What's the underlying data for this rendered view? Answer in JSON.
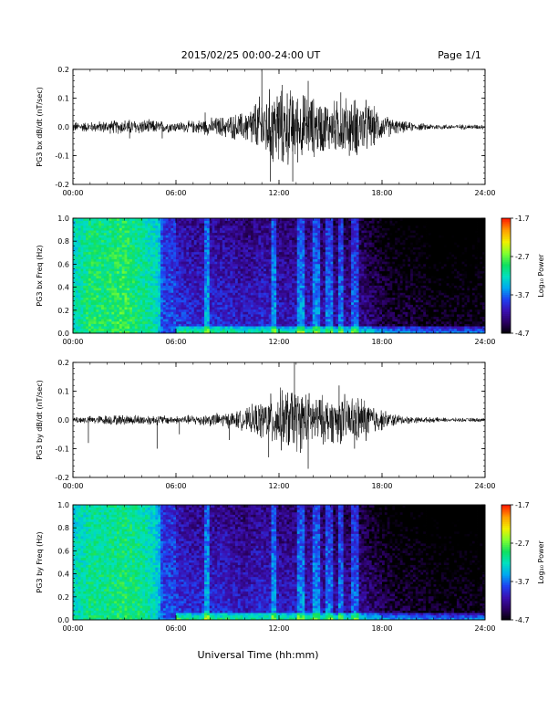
{
  "header": {
    "date_range": "2015/02/25  00:00-24:00 UT",
    "page": "Page 1/1"
  },
  "footer": {
    "xlabel": "Universal Time (hh:mm)"
  },
  "colorbar": {
    "label": "Log₁₀ Power",
    "ticks": [
      "-1.7",
      "-2.7",
      "-3.7",
      "-4.7"
    ],
    "range": [
      -4.7,
      -1.7
    ],
    "colors": [
      "#000000",
      "#2a0060",
      "#3a10b0",
      "#2040f0",
      "#00a8f0",
      "#00e0c0",
      "#10e060",
      "#80ff30",
      "#f0f000",
      "#ffa000",
      "#ff2000"
    ]
  },
  "chart_data": [
    {
      "type": "line",
      "ylabel": "PG3 bx dB/dt (nT/sec)",
      "ylim": [
        -0.2,
        0.2
      ],
      "yticks": [
        "0.2",
        "0.1",
        "0.0",
        "-0.1",
        "-0.2"
      ],
      "xticks": [
        "00:00",
        "06:00",
        "12:00",
        "18:00",
        "24:00"
      ],
      "envelope_hours": [
        0,
        1,
        2,
        3,
        4,
        5,
        6,
        7,
        8,
        9,
        10,
        11,
        12,
        13,
        14,
        15,
        16,
        17,
        18,
        19,
        20,
        21,
        22,
        23,
        24
      ],
      "envelope_amplitude": [
        0.02,
        0.02,
        0.025,
        0.03,
        0.03,
        0.025,
        0.02,
        0.025,
        0.035,
        0.045,
        0.06,
        0.13,
        0.17,
        0.14,
        0.12,
        0.1,
        0.12,
        0.11,
        0.05,
        0.025,
        0.015,
        0.012,
        0.01,
        0.01,
        0.01
      ],
      "spikes": [
        [
          3.3,
          -0.04
        ],
        [
          5.2,
          -0.04
        ],
        [
          7.7,
          0.05
        ],
        [
          11.0,
          0.2
        ],
        [
          11.5,
          -0.19
        ],
        [
          12.8,
          -0.19
        ],
        [
          13.7,
          0.16
        ],
        [
          15.6,
          0.12
        ],
        [
          16.5,
          -0.08
        ]
      ]
    },
    {
      "type": "heatmap",
      "ylabel": "PG3 bx Freq (Hz)",
      "ylim": [
        0.0,
        1.0
      ],
      "yticks": [
        "1.0",
        "0.8",
        "0.6",
        "0.4",
        "0.2",
        "0.0"
      ],
      "xticks": [
        "00:00",
        "06:00",
        "12:00",
        "18:00",
        "24:00"
      ],
      "colorbar_label": "Log₁₀ Power",
      "zlim": [
        -4.7,
        -1.7
      ],
      "level_hours": [
        0,
        1,
        2,
        3,
        4,
        5,
        5.2,
        6,
        7,
        8,
        9,
        10,
        11,
        12,
        13,
        14,
        15,
        16,
        17,
        18,
        19,
        20,
        21,
        22,
        23,
        24
      ],
      "level_log_power": [
        -3.2,
        -2.9,
        -2.9,
        -2.8,
        -3.0,
        -3.2,
        -3.8,
        -3.8,
        -3.9,
        -3.9,
        -3.9,
        -4.0,
        -3.9,
        -4.0,
        -4.0,
        -4.0,
        -4.1,
        -4.1,
        -4.2,
        -4.4,
        -4.5,
        -4.5,
        -4.6,
        -4.6,
        -4.6,
        -4.6
      ],
      "vertical_bursts_hours": [
        7.8,
        11.7,
        13.3,
        14.2,
        14.9,
        15.6,
        16.4
      ]
    },
    {
      "type": "line",
      "ylabel": "PG3 by dB/dt (nT/sec)",
      "ylim": [
        -0.2,
        0.2
      ],
      "yticks": [
        "0.2",
        "0.1",
        "0.0",
        "-0.1",
        "-0.2"
      ],
      "xticks": [
        "00:00",
        "06:00",
        "12:00",
        "18:00",
        "24:00"
      ],
      "envelope_hours": [
        0,
        1,
        2,
        3,
        4,
        5,
        6,
        7,
        8,
        9,
        10,
        11,
        12,
        13,
        14,
        15,
        16,
        17,
        18,
        19,
        20,
        21,
        22,
        23,
        24
      ],
      "envelope_amplitude": [
        0.015,
        0.015,
        0.02,
        0.02,
        0.02,
        0.02,
        0.015,
        0.02,
        0.025,
        0.03,
        0.04,
        0.08,
        0.12,
        0.13,
        0.1,
        0.09,
        0.1,
        0.09,
        0.04,
        0.02,
        0.012,
        0.01,
        0.008,
        0.008,
        0.008
      ],
      "spikes": [
        [
          0.9,
          -0.08
        ],
        [
          4.9,
          -0.1
        ],
        [
          6.2,
          -0.05
        ],
        [
          9.1,
          -0.07
        ],
        [
          11.4,
          -0.13
        ],
        [
          12.9,
          0.2
        ],
        [
          13.7,
          -0.17
        ],
        [
          15.5,
          0.12
        ],
        [
          16.4,
          -0.1
        ]
      ]
    },
    {
      "type": "heatmap",
      "ylabel": "PG3 by Freq (Hz)",
      "ylim": [
        0.0,
        1.0
      ],
      "yticks": [
        "1.0",
        "0.8",
        "0.6",
        "0.4",
        "0.2",
        "0.0"
      ],
      "xticks": [
        "00:00",
        "06:00",
        "12:00",
        "18:00",
        "24:00"
      ],
      "colorbar_label": "Log₁₀ Power",
      "zlim": [
        -4.7,
        -1.7
      ],
      "level_hours": [
        0,
        1,
        2,
        3,
        4,
        5,
        5.2,
        6,
        7,
        8,
        9,
        10,
        11,
        12,
        13,
        14,
        15,
        16,
        17,
        18,
        19,
        20,
        21,
        22,
        23,
        24
      ],
      "level_log_power": [
        -3.2,
        -3.0,
        -3.0,
        -2.9,
        -3.0,
        -3.3,
        -3.8,
        -3.8,
        -3.9,
        -3.9,
        -3.9,
        -4.0,
        -3.9,
        -4.0,
        -4.0,
        -4.0,
        -4.1,
        -4.1,
        -4.2,
        -4.4,
        -4.5,
        -4.5,
        -4.6,
        -4.6,
        -4.6,
        -4.6
      ],
      "vertical_bursts_hours": [
        7.8,
        11.7,
        13.3,
        14.2,
        14.9,
        15.6,
        16.4
      ]
    }
  ]
}
